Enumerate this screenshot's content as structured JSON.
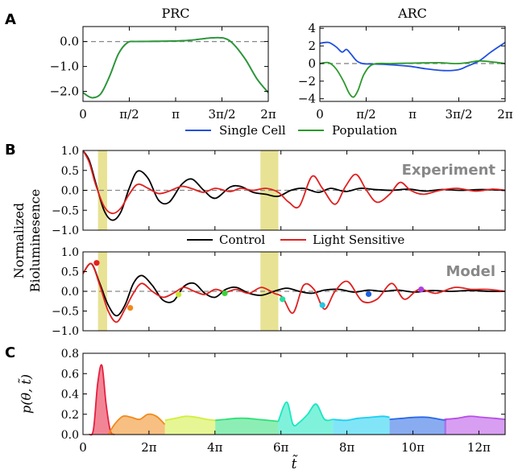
{
  "panel_letters": {
    "a": "A",
    "b": "B",
    "c": "C"
  },
  "chart_data": [
    {
      "id": "prc",
      "type": "line",
      "title": "PRC",
      "xlim": [
        0,
        6.2832
      ],
      "ylim": [
        -2.4,
        0.6
      ],
      "xticks": [
        {
          "value": 0,
          "label": "0"
        },
        {
          "value": 1.5708,
          "label": "π/2"
        },
        {
          "value": 3.1416,
          "label": "π"
        },
        {
          "value": 4.7124,
          "label": "3π/2"
        },
        {
          "value": 6.2832,
          "label": "2π"
        }
      ],
      "yticks": [
        {
          "value": 0,
          "label": "0.0"
        },
        {
          "value": -1,
          "label": "−1.0"
        },
        {
          "value": -2,
          "label": "−2.0"
        }
      ],
      "baseline": 0,
      "series": [
        {
          "name": "Single Cell",
          "color": "#1f4fe0",
          "x": [
            0,
            0.3,
            0.6,
            0.9,
            1.2,
            1.5,
            1.8,
            2.4,
            3.0,
            3.6,
            4.0,
            4.4,
            4.8,
            5.1,
            5.5,
            5.9,
            6.2832
          ],
          "y": [
            -2.05,
            -2.25,
            -2.1,
            -1.4,
            -0.5,
            -0.05,
            0.0,
            0.01,
            0.02,
            0.05,
            0.1,
            0.15,
            0.13,
            -0.1,
            -0.7,
            -1.5,
            -2.05
          ]
        },
        {
          "name": "Population",
          "color": "#2a9a2a",
          "x": [
            0,
            0.3,
            0.6,
            0.9,
            1.2,
            1.5,
            1.8,
            2.4,
            3.0,
            3.6,
            4.0,
            4.4,
            4.8,
            5.1,
            5.5,
            5.9,
            6.2832
          ],
          "y": [
            -2.05,
            -2.25,
            -2.1,
            -1.4,
            -0.5,
            -0.05,
            0.0,
            0.01,
            0.02,
            0.05,
            0.1,
            0.15,
            0.13,
            -0.1,
            -0.7,
            -1.5,
            -2.05
          ]
        }
      ]
    },
    {
      "id": "arc",
      "type": "line",
      "title": "ARC",
      "xlim": [
        0,
        6.2832
      ],
      "ylim": [
        -4.3,
        4.2
      ],
      "xticks": [
        {
          "value": 0,
          "label": "0"
        },
        {
          "value": 1.5708,
          "label": "π/2"
        },
        {
          "value": 3.1416,
          "label": "π"
        },
        {
          "value": 4.7124,
          "label": "3π/2"
        },
        {
          "value": 6.2832,
          "label": "2π"
        }
      ],
      "yticks": [
        {
          "value": 4,
          "label": "4"
        },
        {
          "value": 2,
          "label": "2"
        },
        {
          "value": 0,
          "label": "0"
        },
        {
          "value": -2,
          "label": "−2"
        },
        {
          "value": -4,
          "label": "−4"
        }
      ],
      "baseline": 0,
      "series": [
        {
          "name": "Single Cell",
          "color": "#1f4fe0",
          "x": [
            0,
            0.3,
            0.55,
            0.75,
            0.9,
            1.05,
            1.25,
            1.45,
            1.7,
            2.2,
            3.0,
            3.6,
            4.2,
            4.7,
            5.0,
            5.4,
            5.8,
            6.2832
          ],
          "y": [
            2.3,
            2.4,
            1.9,
            1.3,
            1.6,
            1.1,
            0.3,
            0.0,
            -0.05,
            -0.1,
            -0.3,
            -0.6,
            -0.8,
            -0.7,
            -0.3,
            0.3,
            1.3,
            2.4
          ]
        },
        {
          "name": "Population",
          "color": "#2a9a2a",
          "x": [
            0,
            0.3,
            0.55,
            0.8,
            1.0,
            1.15,
            1.3,
            1.5,
            1.8,
            2.4,
            3.2,
            4.0,
            4.6,
            5.0,
            5.4,
            5.8,
            6.2832
          ],
          "y": [
            0.0,
            0.1,
            -0.6,
            -2.0,
            -3.4,
            -3.8,
            -3.0,
            -1.2,
            -0.1,
            0.0,
            0.05,
            0.1,
            0.0,
            0.1,
            0.3,
            0.2,
            0.0
          ]
        }
      ]
    },
    {
      "id": "experiment",
      "type": "line",
      "annotation": "Experiment",
      "xlim": [
        0,
        40.2
      ],
      "ylim": [
        -1.0,
        1.0
      ],
      "yticks": [
        {
          "value": 1,
          "label": "1.0"
        },
        {
          "value": 0.5,
          "label": "0.5"
        },
        {
          "value": 0,
          "label": "0.0"
        },
        {
          "value": -0.5,
          "label": "−0.5"
        },
        {
          "value": -1,
          "label": "−1.0"
        }
      ],
      "ylabel": "Normalized\nBioluminesence",
      "baseline": 0,
      "highlight_bands": [
        [
          1.43,
          2.3
        ],
        [
          16.9,
          18.6
        ]
      ],
      "series": [
        {
          "name": "Control",
          "color": "#000000",
          "x": [
            0,
            0.6,
            1.2,
            2.0,
            2.8,
            3.6,
            4.4,
            5.2,
            6.2,
            7.2,
            8.2,
            9.4,
            10.4,
            11.5,
            12.6,
            14.0,
            15.0,
            16.2,
            17.4,
            18.6,
            19.8,
            21.0,
            22.4,
            23.6,
            25.0,
            26.4,
            27.8,
            29.4,
            31.0,
            32.6,
            34.2,
            36.0,
            38.0,
            40.2
          ],
          "y": [
            1.0,
            0.75,
            0.2,
            -0.5,
            -0.75,
            -0.55,
            0.05,
            0.48,
            0.3,
            -0.25,
            -0.3,
            0.15,
            0.28,
            0.0,
            -0.2,
            0.08,
            0.1,
            -0.05,
            -0.1,
            -0.15,
            0.0,
            0.05,
            -0.05,
            0.05,
            -0.03,
            0.05,
            0.02,
            0.0,
            0.03,
            -0.02,
            0.02,
            0.0,
            0.02,
            0.0
          ]
        },
        {
          "name": "Light Sensitive",
          "color": "#e02020",
          "x": [
            0,
            0.6,
            1.2,
            2.0,
            2.8,
            3.6,
            4.4,
            5.2,
            6.2,
            7.2,
            8.2,
            9.4,
            10.4,
            11.5,
            12.6,
            14.0,
            15.0,
            16.2,
            17.4,
            18.6,
            19.6,
            20.6,
            21.8,
            22.8,
            24.0,
            25.0,
            26.0,
            27.0,
            28.0,
            29.2,
            30.2,
            31.2,
            32.4,
            34.0,
            35.6,
            37.4,
            39.0,
            40.2
          ],
          "y": [
            1.0,
            0.7,
            0.15,
            -0.4,
            -0.58,
            -0.45,
            -0.1,
            0.15,
            0.05,
            -0.08,
            -0.02,
            0.1,
            0.04,
            -0.05,
            0.05,
            -0.03,
            0.05,
            0.0,
            0.05,
            -0.05,
            -0.3,
            -0.4,
            0.35,
            0.05,
            -0.35,
            0.1,
            0.4,
            0.0,
            -0.3,
            -0.1,
            0.2,
            0.0,
            -0.1,
            0.0,
            0.05,
            -0.02,
            0.03,
            0.0
          ]
        }
      ]
    },
    {
      "id": "model",
      "type": "line",
      "annotation": "Model",
      "xlim": [
        0,
        40.2
      ],
      "ylim": [
        -1.0,
        1.0
      ],
      "yticks": [
        {
          "value": 1,
          "label": "1.0"
        },
        {
          "value": 0.5,
          "label": "0.5"
        },
        {
          "value": 0,
          "label": "0.0"
        },
        {
          "value": -0.5,
          "label": "−0.5"
        },
        {
          "value": -1,
          "label": "−1.0"
        }
      ],
      "baseline": 0,
      "highlight_bands": [
        [
          1.43,
          2.3
        ],
        [
          16.9,
          18.6
        ]
      ],
      "legend": [
        {
          "name": "Control",
          "color": "#000000"
        },
        {
          "name": "Light Sensitive",
          "color": "#e02020"
        }
      ],
      "series": [
        {
          "name": "Control",
          "color": "#000000",
          "x": [
            0,
            0.8,
            1.6,
            2.4,
            3.2,
            4.0,
            4.8,
            5.6,
            6.6,
            7.6,
            8.6,
            9.6,
            10.6,
            11.6,
            12.6,
            13.6,
            14.6,
            15.8,
            17.0,
            18.2,
            19.4,
            20.6,
            21.8,
            23.0,
            24.4,
            25.8,
            27.2,
            28.6,
            30.0,
            31.6,
            33.2,
            35.0,
            36.8,
            38.6,
            40.2
          ],
          "y": [
            0.45,
            0.7,
            0.2,
            -0.35,
            -0.62,
            -0.35,
            0.2,
            0.4,
            0.15,
            -0.22,
            -0.25,
            0.12,
            0.2,
            -0.05,
            -0.15,
            0.05,
            0.1,
            -0.05,
            -0.1,
            0.0,
            0.08,
            0.0,
            -0.05,
            0.03,
            0.05,
            -0.02,
            0.03,
            0.0,
            0.03,
            -0.02,
            0.02,
            0.0,
            0.02,
            0.0,
            0.0
          ]
        },
        {
          "name": "Light Sensitive",
          "color": "#e02020",
          "x": [
            0,
            0.8,
            1.6,
            2.4,
            3.2,
            4.0,
            4.8,
            5.6,
            6.6,
            7.6,
            8.6,
            9.6,
            10.6,
            11.6,
            12.6,
            13.6,
            14.6,
            15.8,
            17.0,
            18.2,
            19.0,
            20.0,
            21.0,
            22.0,
            23.0,
            24.0,
            25.2,
            26.6,
            28.0,
            29.4,
            30.6,
            32.0,
            33.6,
            35.4,
            37.0,
            38.6,
            40.2
          ],
          "y": [
            0.45,
            0.7,
            0.15,
            -0.5,
            -0.78,
            -0.45,
            -0.05,
            0.2,
            0.0,
            -0.15,
            -0.05,
            0.1,
            0.0,
            -0.08,
            0.05,
            -0.02,
            0.05,
            -0.05,
            0.1,
            -0.05,
            -0.15,
            -0.55,
            0.15,
            0.05,
            -0.45,
            0.0,
            0.25,
            -0.25,
            -0.2,
            0.2,
            -0.2,
            0.05,
            -0.05,
            0.1,
            0.05,
            0.05,
            0.0
          ]
        }
      ],
      "markers": [
        {
          "x": 1.3,
          "y": 0.72,
          "color": "#e62020"
        },
        {
          "x": 4.5,
          "y": -0.42,
          "color": "#f08a1c"
        },
        {
          "x": 9.1,
          "y": -0.08,
          "color": "#c8e632"
        },
        {
          "x": 13.5,
          "y": -0.05,
          "color": "#3ad23a"
        },
        {
          "x": 19.0,
          "y": -0.2,
          "color": "#22e0a0"
        },
        {
          "x": 22.8,
          "y": -0.35,
          "color": "#22c8e0"
        },
        {
          "x": 27.2,
          "y": -0.07,
          "color": "#2060e0"
        },
        {
          "x": 32.2,
          "y": 0.05,
          "color": "#b040e0"
        }
      ]
    },
    {
      "id": "density",
      "type": "area",
      "xlim": [
        0,
        40.2
      ],
      "ylim": [
        0,
        0.8
      ],
      "ylabel": "p(θ, t̃)",
      "xlabel": "t̃",
      "xticks": [
        {
          "value": 0,
          "label": "0"
        },
        {
          "value": 6.2832,
          "label": "2π"
        },
        {
          "value": 12.566,
          "label": "4π"
        },
        {
          "value": 18.85,
          "label": "6π"
        },
        {
          "value": 25.13,
          "label": "8π"
        },
        {
          "value": 31.42,
          "label": "10π"
        },
        {
          "value": 37.7,
          "label": "12π"
        }
      ],
      "yticks": [
        {
          "value": 0,
          "label": "0.0"
        },
        {
          "value": 0.2,
          "label": "0.2"
        },
        {
          "value": 0.4,
          "label": "0.4"
        },
        {
          "value": 0.6,
          "label": "0.6"
        },
        {
          "value": 0.8,
          "label": "0.8"
        }
      ],
      "series": [
        {
          "color": "#e62040",
          "x": [
            0.6,
            1.0,
            1.4,
            1.8,
            2.2,
            2.6,
            3.0
          ],
          "y": [
            0.0,
            0.05,
            0.5,
            0.68,
            0.3,
            0.04,
            0.0
          ]
        },
        {
          "color": "#f08a1c",
          "x": [
            2.4,
            3.0,
            3.8,
            4.6,
            5.4,
            6.2,
            7.0,
            7.8
          ],
          "y": [
            0.0,
            0.1,
            0.18,
            0.17,
            0.15,
            0.2,
            0.18,
            0.1
          ]
        },
        {
          "color": "#d2ee3c",
          "x": [
            7.8,
            8.8,
            9.8,
            10.8,
            11.8,
            12.6
          ],
          "y": [
            0.14,
            0.16,
            0.18,
            0.17,
            0.15,
            0.14
          ]
        },
        {
          "color": "#30e078",
          "x": [
            12.6,
            13.6,
            14.6,
            15.6,
            16.6,
            17.6,
            18.6
          ],
          "y": [
            0.14,
            0.15,
            0.16,
            0.16,
            0.15,
            0.14,
            0.13
          ]
        },
        {
          "color": "#18e8c0",
          "x": [
            18.6,
            19.4,
            20.0,
            20.6,
            21.4,
            22.2,
            23.0,
            23.8
          ],
          "y": [
            0.13,
            0.32,
            0.1,
            0.12,
            0.2,
            0.3,
            0.15,
            0.15
          ]
        },
        {
          "color": "#1ad0f0",
          "x": [
            23.8,
            25.0,
            26.2,
            27.4,
            28.6,
            29.2
          ],
          "y": [
            0.15,
            0.14,
            0.16,
            0.17,
            0.18,
            0.17
          ]
        },
        {
          "color": "#2868e6",
          "x": [
            29.2,
            30.4,
            31.6,
            32.8,
            34.0,
            34.6
          ],
          "y": [
            0.15,
            0.16,
            0.17,
            0.17,
            0.15,
            0.14
          ]
        },
        {
          "color": "#b84ee6",
          "x": [
            34.4,
            35.6,
            36.8,
            38.0,
            39.2,
            40.2
          ],
          "y": [
            0.15,
            0.16,
            0.18,
            0.17,
            0.16,
            0.15
          ]
        }
      ]
    }
  ]
}
